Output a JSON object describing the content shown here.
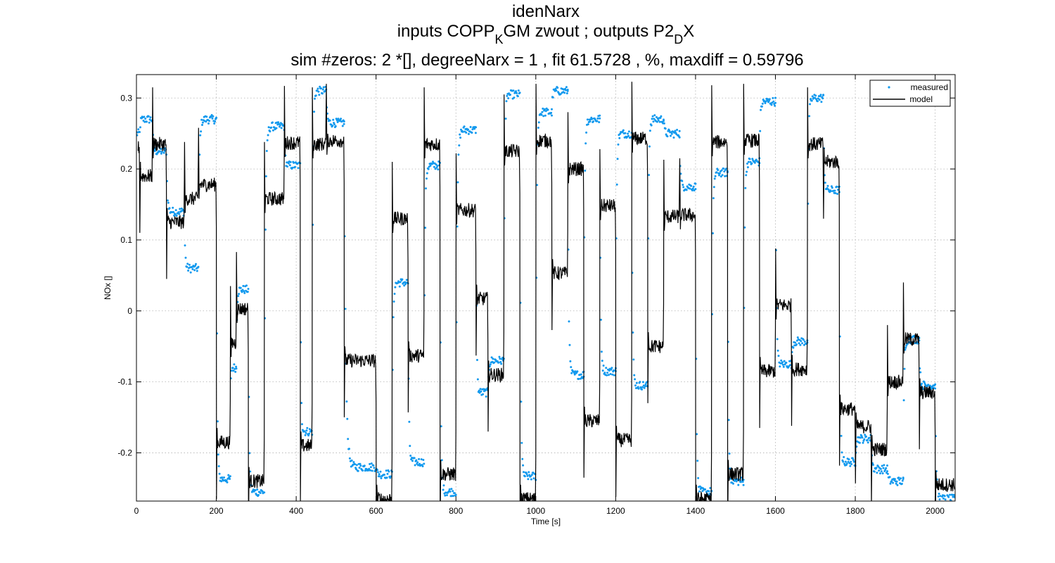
{
  "chart_data": {
    "type": "line",
    "title": "idenNarx",
    "subtitle": {
      "prefix": "inputs COPP",
      "sub1": "K",
      "middle": "GM zwout ; outputs P2",
      "sub2": "D",
      "suffix": "X"
    },
    "subtitle2": "sim #zeros:  2 *[], degreeNarx =  1 , fit  61.5728 , %, maxdiff =  0.59796",
    "xlabel": "Time [s]",
    "ylabel": "NOx  []",
    "xlim": [
      0,
      2050
    ],
    "ylim": [
      -0.268,
      0.333
    ],
    "xticks": [
      0,
      200,
      400,
      600,
      800,
      1000,
      1200,
      1400,
      1600,
      1800,
      2000
    ],
    "xtick_labels": [
      "0",
      "200",
      "400",
      "600",
      "800",
      "1000",
      "1200",
      "1400",
      "1600",
      "1800",
      "2000"
    ],
    "yticks": [
      -0.2,
      -0.1,
      0,
      0.1,
      0.2,
      0.3
    ],
    "ytick_labels": [
      "-0.2",
      "-0.1",
      "0",
      "0.1",
      "0.2",
      "0.3"
    ],
    "grid": true,
    "legend_position": "top-right",
    "colors": {
      "measured": "#1199ee",
      "model": "#000000"
    },
    "series": [
      {
        "name": "measured",
        "style": "dots",
        "segments": [
          [
            0,
            8,
            0.25
          ],
          [
            8,
            40,
            0.27
          ],
          [
            40,
            75,
            0.225
          ],
          [
            75,
            120,
            0.14
          ],
          [
            120,
            155,
            0.06
          ],
          [
            155,
            200,
            0.27
          ],
          [
            200,
            235,
            -0.237
          ],
          [
            235,
            250,
            -0.08
          ],
          [
            250,
            280,
            0.03
          ],
          [
            280,
            320,
            -0.255
          ],
          [
            320,
            370,
            0.26
          ],
          [
            370,
            410,
            0.205
          ],
          [
            410,
            440,
            -0.17
          ],
          [
            440,
            475,
            0.31
          ],
          [
            475,
            520,
            0.265
          ],
          [
            520,
            600,
            -0.22
          ],
          [
            600,
            640,
            -0.23
          ],
          [
            640,
            680,
            0.04
          ],
          [
            680,
            720,
            -0.213
          ],
          [
            720,
            760,
            0.205
          ],
          [
            760,
            800,
            -0.255
          ],
          [
            800,
            850,
            0.255
          ],
          [
            850,
            880,
            -0.115
          ],
          [
            880,
            920,
            -0.07
          ],
          [
            920,
            960,
            0.305
          ],
          [
            960,
            1000,
            -0.233
          ],
          [
            1000,
            1040,
            0.28
          ],
          [
            1040,
            1080,
            0.31
          ],
          [
            1080,
            1120,
            -0.09
          ],
          [
            1120,
            1160,
            0.27
          ],
          [
            1160,
            1200,
            -0.085
          ],
          [
            1200,
            1240,
            0.25
          ],
          [
            1240,
            1280,
            -0.105
          ],
          [
            1280,
            1320,
            0.27
          ],
          [
            1320,
            1360,
            0.25
          ],
          [
            1360,
            1400,
            0.175
          ],
          [
            1400,
            1440,
            -0.255
          ],
          [
            1440,
            1480,
            0.195
          ],
          [
            1480,
            1520,
            -0.24
          ],
          [
            1520,
            1560,
            0.21
          ],
          [
            1560,
            1600,
            0.295
          ],
          [
            1600,
            1640,
            -0.075
          ],
          [
            1640,
            1680,
            -0.043
          ],
          [
            1680,
            1720,
            0.3
          ],
          [
            1720,
            1760,
            0.17
          ],
          [
            1760,
            1800,
            -0.213
          ],
          [
            1800,
            1840,
            -0.18
          ],
          [
            1840,
            1880,
            -0.223
          ],
          [
            1880,
            1920,
            -0.24
          ],
          [
            1920,
            1960,
            -0.04
          ],
          [
            1960,
            2000,
            -0.105
          ],
          [
            2000,
            2050,
            -0.265
          ]
        ]
      },
      {
        "name": "model",
        "style": "line",
        "segments": [
          [
            0,
            8,
            0.23
          ],
          [
            8,
            40,
            0.19
          ],
          [
            40,
            75,
            0.235
          ],
          [
            75,
            120,
            0.125
          ],
          [
            120,
            155,
            0.158
          ],
          [
            155,
            200,
            0.178
          ],
          [
            200,
            235,
            -0.185
          ],
          [
            235,
            250,
            -0.045
          ],
          [
            250,
            280,
            0.003
          ],
          [
            280,
            320,
            -0.24
          ],
          [
            320,
            370,
            0.158
          ],
          [
            370,
            410,
            0.237
          ],
          [
            410,
            440,
            -0.19
          ],
          [
            440,
            475,
            0.235
          ],
          [
            475,
            520,
            0.24
          ],
          [
            520,
            600,
            -0.07
          ],
          [
            600,
            640,
            -0.265
          ],
          [
            640,
            680,
            0.13
          ],
          [
            680,
            720,
            -0.063
          ],
          [
            720,
            760,
            0.235
          ],
          [
            760,
            800,
            -0.23
          ],
          [
            800,
            850,
            0.142
          ],
          [
            850,
            880,
            0.017
          ],
          [
            880,
            920,
            -0.09
          ],
          [
            920,
            960,
            0.225
          ],
          [
            960,
            1000,
            -0.265
          ],
          [
            1000,
            1040,
            0.24
          ],
          [
            1040,
            1080,
            0.053
          ],
          [
            1080,
            1120,
            0.2
          ],
          [
            1120,
            1160,
            -0.155
          ],
          [
            1160,
            1200,
            0.148
          ],
          [
            1200,
            1240,
            -0.182
          ],
          [
            1240,
            1280,
            0.243
          ],
          [
            1280,
            1320,
            -0.05
          ],
          [
            1320,
            1360,
            0.133
          ],
          [
            1360,
            1400,
            0.135
          ],
          [
            1400,
            1440,
            -0.265
          ],
          [
            1440,
            1480,
            0.238
          ],
          [
            1480,
            1520,
            -0.23
          ],
          [
            1520,
            1560,
            0.24
          ],
          [
            1560,
            1600,
            -0.085
          ],
          [
            1600,
            1640,
            0.008
          ],
          [
            1640,
            1680,
            -0.082
          ],
          [
            1680,
            1720,
            0.235
          ],
          [
            1720,
            1760,
            0.21
          ],
          [
            1760,
            1800,
            -0.138
          ],
          [
            1800,
            1840,
            -0.163
          ],
          [
            1840,
            1880,
            -0.195
          ],
          [
            1880,
            1920,
            -0.1
          ],
          [
            1920,
            1960,
            -0.04
          ],
          [
            1960,
            2000,
            -0.115
          ],
          [
            2000,
            2050,
            -0.245
          ]
        ]
      }
    ]
  }
}
